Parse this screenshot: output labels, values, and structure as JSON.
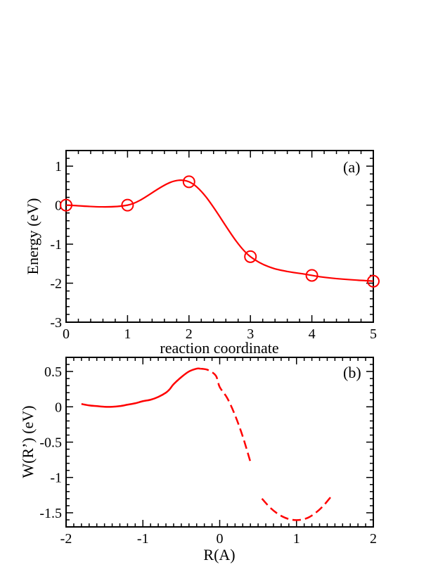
{
  "chart_data": [
    {
      "type": "line",
      "panel_label": "(a)",
      "xlabel": "reaction coordinate",
      "ylabel": "Energy (eV)",
      "xlim": [
        0,
        5
      ],
      "ylim": [
        -3,
        1.4
      ],
      "xticks": [
        "0",
        "1",
        "2",
        "3",
        "4",
        "5"
      ],
      "yticks": [
        "-3",
        "-2",
        "-1",
        "0",
        "1"
      ],
      "series": [
        {
          "color": "#ff0000",
          "marker": "circle",
          "points": [
            [
              0,
              0
            ],
            [
              1,
              0
            ],
            [
              2,
              0.6
            ],
            [
              3,
              -1.32
            ],
            [
              4,
              -1.8
            ],
            [
              5,
              -1.95
            ]
          ]
        }
      ]
    },
    {
      "type": "line",
      "panel_label": "(b)",
      "xlabel": "R(A)",
      "ylabel": "W(R’) (eV)",
      "xlim": [
        -2,
        2
      ],
      "ylim": [
        -1.7,
        0.7
      ],
      "xticks": [
        "-2",
        "-1",
        "0",
        "1",
        "2"
      ],
      "yticks": [
        "-1.5",
        "-1",
        "-0.5",
        "0",
        "0.5"
      ],
      "series": [
        {
          "color": "#ff0000",
          "style": "solid",
          "points": [
            [
              -1.8,
              0.04
            ],
            [
              -1.7,
              0.02
            ],
            [
              -1.6,
              0.01
            ],
            [
              -1.5,
              0.0
            ],
            [
              -1.4,
              0.0
            ],
            [
              -1.3,
              0.01
            ],
            [
              -1.2,
              0.03
            ],
            [
              -1.1,
              0.05
            ],
            [
              -1.0,
              0.08
            ],
            [
              -0.9,
              0.1
            ],
            [
              -0.8,
              0.14
            ],
            [
              -0.7,
              0.2
            ],
            [
              -0.65,
              0.25
            ],
            [
              -0.6,
              0.32
            ],
            [
              -0.5,
              0.42
            ],
            [
              -0.4,
              0.5
            ],
            [
              -0.3,
              0.54
            ],
            [
              -0.25,
              0.54
            ]
          ]
        },
        {
          "color": "#ff0000",
          "style": "dashed",
          "points": [
            [
              -0.25,
              0.54
            ],
            [
              -0.15,
              0.52
            ],
            [
              -0.05,
              0.44
            ],
            [
              0.0,
              0.28
            ],
            [
              0.1,
              0.12
            ],
            [
              0.2,
              -0.12
            ],
            [
              0.3,
              -0.42
            ],
            [
              0.4,
              -0.78
            ]
          ]
        },
        {
          "color": "#ff0000",
          "style": "dashed",
          "points": [
            [
              0.55,
              -1.3
            ],
            [
              0.65,
              -1.42
            ],
            [
              0.75,
              -1.51
            ],
            [
              0.85,
              -1.57
            ],
            [
              0.95,
              -1.6
            ],
            [
              1.05,
              -1.6
            ],
            [
              1.15,
              -1.57
            ],
            [
              1.25,
              -1.5
            ],
            [
              1.35,
              -1.4
            ],
            [
              1.45,
              -1.27
            ]
          ]
        }
      ]
    }
  ]
}
